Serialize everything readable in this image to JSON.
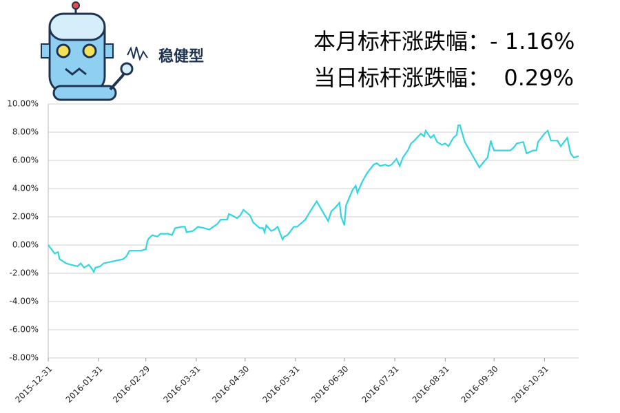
{
  "header": {
    "badge": "稳健型",
    "month_change": "本月标杆涨跌幅：- 1.16%",
    "day_change": "当日标杆涨跌幅：  0.29%"
  },
  "chart_data": {
    "type": "line",
    "color": "#33d6e0",
    "grid": true,
    "x": [
      "2015-12-31",
      "2016-01-04",
      "2016-01-06",
      "2016-01-07",
      "2016-01-11",
      "2016-01-14",
      "2016-01-18",
      "2016-01-20",
      "2016-01-22",
      "2016-01-25",
      "2016-01-27",
      "2016-01-28",
      "2016-01-29",
      "2016-02-01",
      "2016-02-03",
      "2016-02-15",
      "2016-02-17",
      "2016-02-19",
      "2016-02-22",
      "2016-02-26",
      "2016-02-29",
      "2016-03-01",
      "2016-03-02",
      "2016-03-04",
      "2016-03-07",
      "2016-03-09",
      "2016-03-14",
      "2016-03-16",
      "2016-03-18",
      "2016-03-22",
      "2016-03-24",
      "2016-03-25",
      "2016-03-29",
      "2016-04-01",
      "2016-04-05",
      "2016-04-08",
      "2016-04-13",
      "2016-04-15",
      "2016-04-19",
      "2016-04-20",
      "2016-04-22",
      "2016-04-25",
      "2016-04-27",
      "2016-04-29",
      "2016-05-03",
      "2016-05-05",
      "2016-05-09",
      "2016-05-11",
      "2016-05-12",
      "2016-05-13",
      "2016-05-16",
      "2016-05-18",
      "2016-05-20",
      "2016-05-23",
      "2016-05-24",
      "2016-05-26",
      "2016-05-30",
      "2016-06-01",
      "2016-06-03",
      "2016-06-06",
      "2016-06-08",
      "2016-06-13",
      "2016-06-15",
      "2016-06-17",
      "2016-06-20",
      "2016-06-22",
      "2016-06-24",
      "2016-06-27",
      "2016-06-28",
      "2016-06-30",
      "2016-07-01",
      "2016-07-05",
      "2016-07-07",
      "2016-07-08",
      "2016-07-11",
      "2016-07-14",
      "2016-07-18",
      "2016-07-20",
      "2016-07-22",
      "2016-07-25",
      "2016-07-27",
      "2016-07-29",
      "2016-08-01",
      "2016-08-03",
      "2016-08-05",
      "2016-08-08",
      "2016-08-10",
      "2016-08-12",
      "2016-08-16",
      "2016-08-18",
      "2016-08-19",
      "2016-08-22",
      "2016-08-24",
      "2016-08-26",
      "2016-08-29",
      "2016-08-31",
      "2016-09-02",
      "2016-09-05",
      "2016-09-07",
      "2016-09-08",
      "2016-09-09",
      "2016-09-12",
      "2016-09-14",
      "2016-09-19",
      "2016-09-21",
      "2016-09-23",
      "2016-09-26",
      "2016-09-28",
      "2016-09-29",
      "2016-09-30",
      "2016-10-10",
      "2016-10-12",
      "2016-10-14",
      "2016-10-18",
      "2016-10-20",
      "2016-10-24",
      "2016-10-26",
      "2016-10-27",
      "2016-10-31",
      "2016-11-02",
      "2016-11-04",
      "2016-11-08",
      "2016-11-10",
      "2016-11-14",
      "2016-11-16",
      "2016-11-18",
      "2016-11-21"
    ],
    "values": [
      0.0,
      -0.6,
      -0.5,
      -1.0,
      -1.3,
      -1.4,
      -1.5,
      -1.3,
      -1.6,
      -1.4,
      -1.7,
      -1.9,
      -1.6,
      -1.5,
      -1.3,
      -1.0,
      -0.8,
      -0.4,
      -0.4,
      -0.4,
      -0.3,
      0.3,
      0.5,
      0.7,
      0.6,
      0.8,
      0.8,
      0.7,
      1.2,
      1.3,
      1.3,
      0.9,
      1.0,
      1.3,
      1.2,
      1.1,
      1.5,
      1.8,
      1.8,
      2.2,
      2.1,
      1.9,
      2.1,
      2.5,
      2.1,
      1.6,
      1.2,
      1.2,
      0.9,
      1.4,
      1.0,
      1.1,
      1.3,
      0.4,
      0.6,
      0.7,
      1.3,
      1.3,
      1.5,
      1.8,
      2.2,
      3.1,
      2.7,
      2.3,
      1.7,
      2.4,
      2.6,
      3.0,
      2.0,
      1.4,
      2.8,
      3.9,
      4.2,
      3.7,
      4.5,
      5.1,
      5.7,
      5.8,
      5.6,
      5.7,
      5.6,
      5.7,
      6.1,
      5.6,
      6.2,
      6.7,
      7.2,
      7.4,
      7.9,
      7.7,
      8.1,
      7.6,
      7.8,
      7.3,
      7.1,
      7.2,
      7.0,
      7.6,
      7.8,
      8.5,
      8.5,
      7.3,
      6.9,
      5.9,
      5.5,
      5.8,
      6.2,
      7.4,
      7.0,
      6.7,
      6.7,
      6.9,
      7.2,
      7.3,
      6.5,
      6.7,
      6.7,
      7.3,
      7.9,
      8.1,
      7.4,
      7.4,
      7.0,
      7.6,
      6.5,
      6.2,
      6.3
    ],
    "xlim": [
      "2015-12-31",
      "2016-11-21"
    ],
    "xticks": [
      "2015-12-31",
      "2016-01-31",
      "2016-02-29",
      "2016-03-31",
      "2016-04-30",
      "2016-05-31",
      "2016-06-30",
      "2016-07-31",
      "2016-08-31",
      "2016-09-30",
      "2016-10-31"
    ],
    "ylim": [
      -8,
      10
    ],
    "yticks": [
      {
        "value": -8,
        "label": "-8.00%"
      },
      {
        "value": -6,
        "label": "-6.00%"
      },
      {
        "value": -4,
        "label": "-4.00%"
      },
      {
        "value": -2,
        "label": "-2.00%"
      },
      {
        "value": 0,
        "label": "0.00%"
      },
      {
        "value": 2,
        "label": "2.00%"
      },
      {
        "value": 4,
        "label": "4.00%"
      },
      {
        "value": 6,
        "label": "6.00%"
      },
      {
        "value": 8,
        "label": "8.00%"
      },
      {
        "value": 10,
        "label": "10.00%"
      }
    ]
  }
}
